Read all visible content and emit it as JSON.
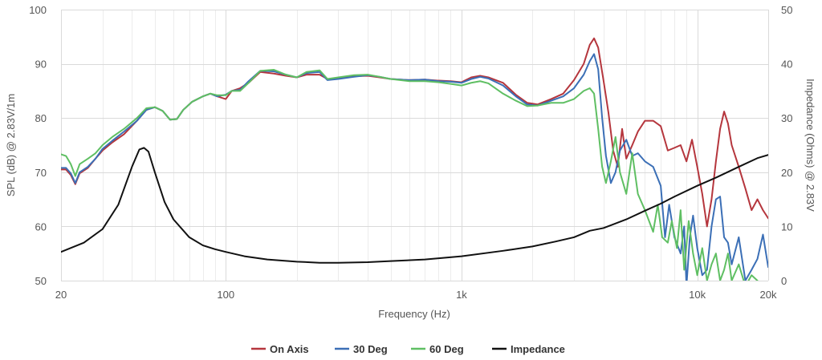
{
  "chart_data": {
    "type": "line",
    "x_scale": "log",
    "xlabel": "Frequency (Hz)",
    "ylabel_left": "SPL (dB) @ 2.83V/1m",
    "ylabel_right": "Impedance (Ohms) @ 2.83V",
    "xlim": [
      20,
      20000
    ],
    "ylim_left": [
      50,
      100
    ],
    "ylim_right": [
      0,
      50
    ],
    "x_ticks": [
      {
        "value": 20,
        "label": "20"
      },
      {
        "value": 100,
        "label": "100"
      },
      {
        "value": 1000,
        "label": "1k"
      },
      {
        "value": 10000,
        "label": "10k"
      },
      {
        "value": 20000,
        "label": "20k"
      }
    ],
    "y_ticks_left": [
      "50",
      "60",
      "70",
      "80",
      "90",
      "100"
    ],
    "y_ticks_right": [
      "0",
      "10",
      "20",
      "30",
      "40",
      "50"
    ],
    "grid": true,
    "legend_position": "bottom-center",
    "series": [
      {
        "name": "On Axis",
        "color": "#b5363d",
        "axis": "left",
        "points": [
          [
            20,
            70.5
          ],
          [
            21,
            70.5
          ],
          [
            22,
            69.5
          ],
          [
            23,
            67.8
          ],
          [
            24,
            69.8
          ],
          [
            26,
            70.8
          ],
          [
            28,
            72.5
          ],
          [
            30,
            74
          ],
          [
            33,
            75.5
          ],
          [
            37,
            77
          ],
          [
            42,
            79.5
          ],
          [
            46,
            81.5
          ],
          [
            50,
            82
          ],
          [
            54,
            81.3
          ],
          [
            58,
            79.7
          ],
          [
            62,
            79.8
          ],
          [
            66,
            81.5
          ],
          [
            72,
            83
          ],
          [
            80,
            84
          ],
          [
            86,
            84.5
          ],
          [
            92,
            84
          ],
          [
            100,
            83.5
          ],
          [
            106,
            85
          ],
          [
            115,
            85.5
          ],
          [
            125,
            86.5
          ],
          [
            140,
            88.5
          ],
          [
            160,
            88.2
          ],
          [
            180,
            87.8
          ],
          [
            200,
            87.5
          ],
          [
            220,
            88
          ],
          [
            250,
            88
          ],
          [
            270,
            87.2
          ],
          [
            300,
            87.3
          ],
          [
            350,
            87.7
          ],
          [
            400,
            87.8
          ],
          [
            450,
            87.5
          ],
          [
            500,
            87.2
          ],
          [
            600,
            87
          ],
          [
            700,
            87.1
          ],
          [
            800,
            86.9
          ],
          [
            900,
            86.8
          ],
          [
            1000,
            86.6
          ],
          [
            1100,
            87.5
          ],
          [
            1200,
            87.8
          ],
          [
            1300,
            87.5
          ],
          [
            1500,
            86.5
          ],
          [
            1700,
            84.3
          ],
          [
            1900,
            82.8
          ],
          [
            2100,
            82.5
          ],
          [
            2400,
            83.5
          ],
          [
            2700,
            84.5
          ],
          [
            3000,
            87
          ],
          [
            3300,
            90
          ],
          [
            3500,
            93.5
          ],
          [
            3650,
            94.7
          ],
          [
            3800,
            93
          ],
          [
            4000,
            87
          ],
          [
            4200,
            81
          ],
          [
            4400,
            74
          ],
          [
            4600,
            71
          ],
          [
            4800,
            78
          ],
          [
            5000,
            72.5
          ],
          [
            5300,
            75
          ],
          [
            5600,
            77.5
          ],
          [
            6000,
            79.5
          ],
          [
            6500,
            79.5
          ],
          [
            7000,
            78.5
          ],
          [
            7500,
            74
          ],
          [
            8000,
            74.5
          ],
          [
            8500,
            75
          ],
          [
            9000,
            72
          ],
          [
            9500,
            76
          ],
          [
            10000,
            71
          ],
          [
            10500,
            66
          ],
          [
            11000,
            60
          ],
          [
            11500,
            65
          ],
          [
            12000,
            72
          ],
          [
            12500,
            78
          ],
          [
            13000,
            81.2
          ],
          [
            13500,
            79
          ],
          [
            14000,
            75
          ],
          [
            15000,
            71
          ],
          [
            16000,
            67
          ],
          [
            17000,
            63
          ],
          [
            18000,
            65
          ],
          [
            19000,
            63
          ],
          [
            20000,
            61.5
          ]
        ]
      },
      {
        "name": "30 Deg",
        "color": "#3b6fb6",
        "axis": "left",
        "points": [
          [
            20,
            70.8
          ],
          [
            21,
            70.8
          ],
          [
            22,
            69.8
          ],
          [
            23,
            68
          ],
          [
            24,
            70
          ],
          [
            26,
            71
          ],
          [
            28,
            72.5
          ],
          [
            30,
            74.3
          ],
          [
            33,
            75.8
          ],
          [
            37,
            77.5
          ],
          [
            42,
            79.5
          ],
          [
            46,
            81.5
          ],
          [
            50,
            82
          ],
          [
            54,
            81.3
          ],
          [
            58,
            79.7
          ],
          [
            62,
            79.8
          ],
          [
            66,
            81.5
          ],
          [
            72,
            83
          ],
          [
            80,
            84
          ],
          [
            86,
            84.5
          ],
          [
            92,
            84
          ],
          [
            100,
            84.3
          ],
          [
            106,
            85
          ],
          [
            115,
            85.2
          ],
          [
            125,
            86.8
          ],
          [
            140,
            88.7
          ],
          [
            160,
            88.6
          ],
          [
            180,
            88
          ],
          [
            200,
            87.5
          ],
          [
            220,
            88.3
          ],
          [
            250,
            88.5
          ],
          [
            270,
            87
          ],
          [
            300,
            87.2
          ],
          [
            350,
            87.6
          ],
          [
            400,
            87.9
          ],
          [
            450,
            87.6
          ],
          [
            500,
            87.2
          ],
          [
            600,
            87
          ],
          [
            700,
            87.1
          ],
          [
            800,
            86.8
          ],
          [
            900,
            86.7
          ],
          [
            1000,
            86.5
          ],
          [
            1100,
            87.2
          ],
          [
            1200,
            87.6
          ],
          [
            1300,
            87.3
          ],
          [
            1500,
            86
          ],
          [
            1700,
            84
          ],
          [
            1900,
            82.5
          ],
          [
            2100,
            82.3
          ],
          [
            2400,
            83.2
          ],
          [
            2700,
            84
          ],
          [
            3000,
            85.5
          ],
          [
            3300,
            88
          ],
          [
            3500,
            90.5
          ],
          [
            3650,
            91.8
          ],
          [
            3800,
            89
          ],
          [
            3950,
            80
          ],
          [
            4100,
            73
          ],
          [
            4300,
            68
          ],
          [
            4500,
            70
          ],
          [
            4700,
            74
          ],
          [
            5000,
            76
          ],
          [
            5300,
            73
          ],
          [
            5600,
            73.5
          ],
          [
            6000,
            72
          ],
          [
            6500,
            71
          ],
          [
            7000,
            67.5
          ],
          [
            7300,
            58
          ],
          [
            7600,
            64
          ],
          [
            8000,
            58
          ],
          [
            8500,
            55
          ],
          [
            8800,
            60
          ],
          [
            9000,
            49
          ],
          [
            9300,
            58
          ],
          [
            9600,
            62
          ],
          [
            10000,
            56
          ],
          [
            10500,
            51
          ],
          [
            11000,
            52
          ],
          [
            11500,
            60
          ],
          [
            12000,
            65
          ],
          [
            12500,
            65.5
          ],
          [
            13000,
            58
          ],
          [
            13500,
            57
          ],
          [
            14000,
            53
          ],
          [
            15000,
            58
          ],
          [
            16000,
            50
          ],
          [
            17000,
            52
          ],
          [
            18000,
            54
          ],
          [
            19000,
            58.5
          ],
          [
            20000,
            52.5
          ]
        ]
      },
      {
        "name": "60 Deg",
        "color": "#5fbf63",
        "axis": "left",
        "points": [
          [
            20,
            73.3
          ],
          [
            21,
            73
          ],
          [
            22,
            71.5
          ],
          [
            23,
            69.3
          ],
          [
            24,
            71.5
          ],
          [
            26,
            72.5
          ],
          [
            28,
            73.5
          ],
          [
            30,
            75
          ],
          [
            33,
            76.5
          ],
          [
            37,
            78
          ],
          [
            42,
            80
          ],
          [
            46,
            81.8
          ],
          [
            50,
            82
          ],
          [
            54,
            81.3
          ],
          [
            58,
            79.7
          ],
          [
            62,
            79.8
          ],
          [
            66,
            81.5
          ],
          [
            72,
            83
          ],
          [
            80,
            84
          ],
          [
            86,
            84.5
          ],
          [
            92,
            84.2
          ],
          [
            100,
            84.2
          ],
          [
            106,
            85
          ],
          [
            115,
            85
          ],
          [
            125,
            86.5
          ],
          [
            140,
            88.7
          ],
          [
            160,
            88.9
          ],
          [
            180,
            88
          ],
          [
            200,
            87.5
          ],
          [
            220,
            88.5
          ],
          [
            250,
            88.8
          ],
          [
            270,
            87.2
          ],
          [
            300,
            87.5
          ],
          [
            350,
            87.9
          ],
          [
            400,
            88
          ],
          [
            450,
            87.6
          ],
          [
            500,
            87.2
          ],
          [
            600,
            86.8
          ],
          [
            700,
            86.8
          ],
          [
            800,
            86.6
          ],
          [
            900,
            86.3
          ],
          [
            1000,
            86
          ],
          [
            1100,
            86.5
          ],
          [
            1200,
            86.8
          ],
          [
            1300,
            86.4
          ],
          [
            1500,
            84.5
          ],
          [
            1700,
            83.2
          ],
          [
            1900,
            82.2
          ],
          [
            2100,
            82.3
          ],
          [
            2400,
            82.8
          ],
          [
            2700,
            82.8
          ],
          [
            3000,
            83.5
          ],
          [
            3300,
            85
          ],
          [
            3500,
            85.5
          ],
          [
            3650,
            84.5
          ],
          [
            3800,
            78
          ],
          [
            3950,
            71
          ],
          [
            4100,
            68
          ],
          [
            4300,
            72
          ],
          [
            4500,
            76.5
          ],
          [
            4700,
            70
          ],
          [
            5000,
            66
          ],
          [
            5300,
            73.5
          ],
          [
            5600,
            66
          ],
          [
            6000,
            63
          ],
          [
            6500,
            59
          ],
          [
            6800,
            64
          ],
          [
            7100,
            58
          ],
          [
            7500,
            57
          ],
          [
            7800,
            61
          ],
          [
            8200,
            56
          ],
          [
            8500,
            63
          ],
          [
            8800,
            52
          ],
          [
            9200,
            61
          ],
          [
            9600,
            55
          ],
          [
            10000,
            51
          ],
          [
            10500,
            56
          ],
          [
            11000,
            50
          ],
          [
            11500,
            53
          ],
          [
            12000,
            55
          ],
          [
            12500,
            50
          ],
          [
            13000,
            52
          ],
          [
            13500,
            55
          ],
          [
            14000,
            50
          ],
          [
            15000,
            53
          ],
          [
            16000,
            49
          ],
          [
            17000,
            51
          ],
          [
            18000,
            50
          ]
        ]
      },
      {
        "name": "Impedance",
        "color": "#111111",
        "axis": "right",
        "points": [
          [
            20,
            5.3
          ],
          [
            25,
            7
          ],
          [
            30,
            9.5
          ],
          [
            35,
            14
          ],
          [
            40,
            21
          ],
          [
            43,
            24.2
          ],
          [
            45,
            24.5
          ],
          [
            47,
            23.8
          ],
          [
            50,
            20
          ],
          [
            55,
            14.5
          ],
          [
            60,
            11.3
          ],
          [
            70,
            8
          ],
          [
            80,
            6.5
          ],
          [
            90,
            5.8
          ],
          [
            100,
            5.3
          ],
          [
            120,
            4.5
          ],
          [
            150,
            3.9
          ],
          [
            200,
            3.5
          ],
          [
            250,
            3.3
          ],
          [
            300,
            3.3
          ],
          [
            400,
            3.4
          ],
          [
            500,
            3.6
          ],
          [
            700,
            3.9
          ],
          [
            1000,
            4.5
          ],
          [
            1500,
            5.5
          ],
          [
            2000,
            6.3
          ],
          [
            2500,
            7.2
          ],
          [
            3000,
            8
          ],
          [
            3500,
            9.2
          ],
          [
            4000,
            9.7
          ],
          [
            5000,
            11.3
          ],
          [
            6000,
            12.9
          ],
          [
            7000,
            14.2
          ],
          [
            8000,
            15.5
          ],
          [
            10000,
            17.5
          ],
          [
            12000,
            19
          ],
          [
            15000,
            21
          ],
          [
            18000,
            22.6
          ],
          [
            20000,
            23.2
          ]
        ]
      }
    ]
  }
}
